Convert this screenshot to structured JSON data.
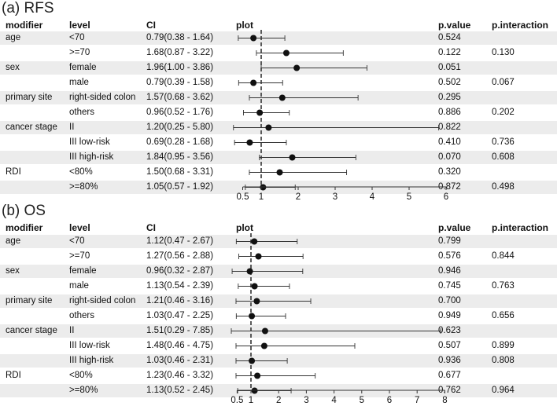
{
  "chart_data": [
    {
      "type": "forest",
      "panel_title": "(a) RFS",
      "headers": {
        "modifier": "modifier",
        "level": "level",
        "ci": "CI",
        "plot": "plot",
        "pvalue": "p.value",
        "pinteraction": "p.interaction"
      },
      "reference_line": 1,
      "xlim": [
        0.3,
        6
      ],
      "ticks": [
        {
          "value": 0.5,
          "label": "0.5"
        },
        {
          "value": 1,
          "label": "1"
        },
        {
          "value": 2,
          "label": "2"
        },
        {
          "value": 3,
          "label": "3"
        },
        {
          "value": 4,
          "label": "4"
        },
        {
          "value": 5,
          "label": "5"
        },
        {
          "value": 6,
          "label": "6"
        }
      ],
      "rows": [
        {
          "modifier": "age",
          "level": "<70",
          "ci": "0.79(0.38 - 1.64)",
          "est": 0.79,
          "lo": 0.38,
          "hi": 1.64,
          "pvalue": "0.524",
          "pinteraction": ""
        },
        {
          "modifier": "",
          "level": ">=70",
          "ci": "1.68(0.87 - 3.22)",
          "est": 1.68,
          "lo": 0.87,
          "hi": 3.22,
          "pvalue": "0.122",
          "pinteraction": "0.130"
        },
        {
          "modifier": "sex",
          "level": "female",
          "ci": "1.96(1.00 - 3.86)",
          "est": 1.96,
          "lo": 1.0,
          "hi": 3.86,
          "pvalue": "0.051",
          "pinteraction": ""
        },
        {
          "modifier": "",
          "level": "male",
          "ci": "0.79(0.39 - 1.58)",
          "est": 0.79,
          "lo": 0.39,
          "hi": 1.58,
          "pvalue": "0.502",
          "pinteraction": "0.067"
        },
        {
          "modifier": "primary site",
          "level": "right-sided colon",
          "ci": "1.57(0.68 - 3.62)",
          "est": 1.57,
          "lo": 0.68,
          "hi": 3.62,
          "pvalue": "0.295",
          "pinteraction": ""
        },
        {
          "modifier": "",
          "level": "others",
          "ci": "0.96(0.52 - 1.76)",
          "est": 0.96,
          "lo": 0.52,
          "hi": 1.76,
          "pvalue": "0.886",
          "pinteraction": "0.202"
        },
        {
          "modifier": "cancer stage",
          "level": "II",
          "ci": "1.20(0.25 - 5.80)",
          "est": 1.2,
          "lo": 0.25,
          "hi": 5.8,
          "pvalue": "0.822",
          "pinteraction": ""
        },
        {
          "modifier": "",
          "level": "III low-risk",
          "ci": "0.69(0.28 - 1.68)",
          "est": 0.69,
          "lo": 0.28,
          "hi": 1.68,
          "pvalue": "0.410",
          "pinteraction": "0.736"
        },
        {
          "modifier": "",
          "level": "III high-risk",
          "ci": "1.84(0.95 - 3.56)",
          "est": 1.84,
          "lo": 0.95,
          "hi": 3.56,
          "pvalue": "0.070",
          "pinteraction": "0.608"
        },
        {
          "modifier": "RDI",
          "level": "<80%",
          "ci": "1.50(0.68 - 3.31)",
          "est": 1.5,
          "lo": 0.68,
          "hi": 3.31,
          "pvalue": "0.320",
          "pinteraction": ""
        },
        {
          "modifier": "",
          "level": ">=80%",
          "ci": "1.05(0.57 - 1.92)",
          "est": 1.05,
          "lo": 0.57,
          "hi": 1.92,
          "pvalue": "0.872",
          "pinteraction": "0.498"
        }
      ]
    },
    {
      "type": "forest",
      "panel_title": "(b) OS",
      "headers": {
        "modifier": "modifier",
        "level": "level",
        "ci": "CI",
        "plot": "plot",
        "pvalue": "p.value",
        "pinteraction": "p.interaction"
      },
      "reference_line": 1,
      "xlim": [
        0.3,
        8
      ],
      "ticks": [
        {
          "value": 0.5,
          "label": "0.5"
        },
        {
          "value": 1,
          "label": "1"
        },
        {
          "value": 2,
          "label": "2"
        },
        {
          "value": 3,
          "label": "3"
        },
        {
          "value": 4,
          "label": "4"
        },
        {
          "value": 5,
          "label": "5"
        },
        {
          "value": 6,
          "label": "6"
        },
        {
          "value": 7,
          "label": "7"
        },
        {
          "value": 8,
          "label": "8"
        }
      ],
      "rows": [
        {
          "modifier": "age",
          "level": "<70",
          "ci": "1.12(0.47 - 2.67)",
          "est": 1.12,
          "lo": 0.47,
          "hi": 2.67,
          "pvalue": "0.799",
          "pinteraction": ""
        },
        {
          "modifier": "",
          "level": ">=70",
          "ci": "1.27(0.56 - 2.88)",
          "est": 1.27,
          "lo": 0.56,
          "hi": 2.88,
          "pvalue": "0.576",
          "pinteraction": "0.844"
        },
        {
          "modifier": "sex",
          "level": "female",
          "ci": "0.96(0.32 - 2.87)",
          "est": 0.96,
          "lo": 0.32,
          "hi": 2.87,
          "pvalue": "0.946",
          "pinteraction": ""
        },
        {
          "modifier": "",
          "level": "male",
          "ci": "1.13(0.54 - 2.39)",
          "est": 1.13,
          "lo": 0.54,
          "hi": 2.39,
          "pvalue": "0.745",
          "pinteraction": "0.763"
        },
        {
          "modifier": "primary site",
          "level": "right-sided colon",
          "ci": "1.21(0.46 - 3.16)",
          "est": 1.21,
          "lo": 0.46,
          "hi": 3.16,
          "pvalue": "0.700",
          "pinteraction": ""
        },
        {
          "modifier": "",
          "level": "others",
          "ci": "1.03(0.47 - 2.25)",
          "est": 1.03,
          "lo": 0.47,
          "hi": 2.25,
          "pvalue": "0.949",
          "pinteraction": "0.656"
        },
        {
          "modifier": "cancer stage",
          "level": "II",
          "ci": "1.51(0.29 - 7.85)",
          "est": 1.51,
          "lo": 0.29,
          "hi": 7.85,
          "pvalue": "0.623",
          "pinteraction": ""
        },
        {
          "modifier": "",
          "level": "III low-risk",
          "ci": "1.48(0.46 - 4.75)",
          "est": 1.48,
          "lo": 0.46,
          "hi": 4.75,
          "pvalue": "0.507",
          "pinteraction": "0.899"
        },
        {
          "modifier": "",
          "level": "III high-risk",
          "ci": "1.03(0.46 - 2.31)",
          "est": 1.03,
          "lo": 0.46,
          "hi": 2.31,
          "pvalue": "0.936",
          "pinteraction": "0.808"
        },
        {
          "modifier": "RDI",
          "level": "<80%",
          "ci": "1.23(0.46 - 3.32)",
          "est": 1.23,
          "lo": 0.46,
          "hi": 3.32,
          "pvalue": "0.677",
          "pinteraction": ""
        },
        {
          "modifier": "",
          "level": ">=80%",
          "ci": "1.13(0.52 - 2.45)",
          "est": 1.13,
          "lo": 0.52,
          "hi": 2.45,
          "pvalue": "0.762",
          "pinteraction": "0.964"
        }
      ]
    }
  ]
}
